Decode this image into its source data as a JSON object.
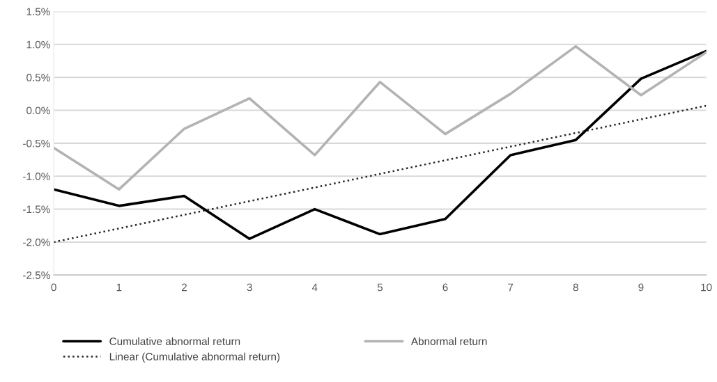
{
  "chart_data": {
    "type": "line",
    "x": [
      0,
      1,
      2,
      3,
      4,
      5,
      6,
      7,
      8,
      9,
      10
    ],
    "series": [
      {
        "name": "Cumulative abnormal return",
        "color": "#000000",
        "line_style": "solid",
        "values": [
          -1.2,
          -1.45,
          -1.3,
          -1.95,
          -1.5,
          -1.88,
          -1.65,
          -0.68,
          -0.45,
          0.48,
          0.9
        ]
      },
      {
        "name": "Abnormal return",
        "color": "#b3b3b3",
        "line_style": "solid",
        "values": [
          -0.57,
          -1.2,
          -0.28,
          0.18,
          -0.68,
          0.43,
          -0.36,
          0.25,
          0.97,
          0.23,
          0.88
        ]
      },
      {
        "name": "Linear (Cumulative abnormal return)",
        "color": "#262626",
        "line_style": "dotted",
        "x": [
          0,
          10
        ],
        "values": [
          -2.0,
          0.07
        ]
      }
    ],
    "xlim": [
      0,
      10
    ],
    "xticks": [
      0,
      1,
      2,
      3,
      4,
      5,
      6,
      7,
      8,
      9,
      10
    ],
    "ylim": [
      -2.5,
      1.5
    ],
    "yticks": [
      {
        "value": -2.5,
        "label": "-2.5%"
      },
      {
        "value": -2.0,
        "label": "-2.0%"
      },
      {
        "value": -1.5,
        "label": "-1.5%"
      },
      {
        "value": -1.0,
        "label": "-1.0%"
      },
      {
        "value": -0.5,
        "label": "-0.5%"
      },
      {
        "value": 0.0,
        "label": "0.0%"
      },
      {
        "value": 0.5,
        "label": "0.5%"
      },
      {
        "value": 1.0,
        "label": "1.0%"
      },
      {
        "value": 1.5,
        "label": "1.5%"
      }
    ],
    "grid": "y",
    "legend": "bottom",
    "marker": "none"
  }
}
